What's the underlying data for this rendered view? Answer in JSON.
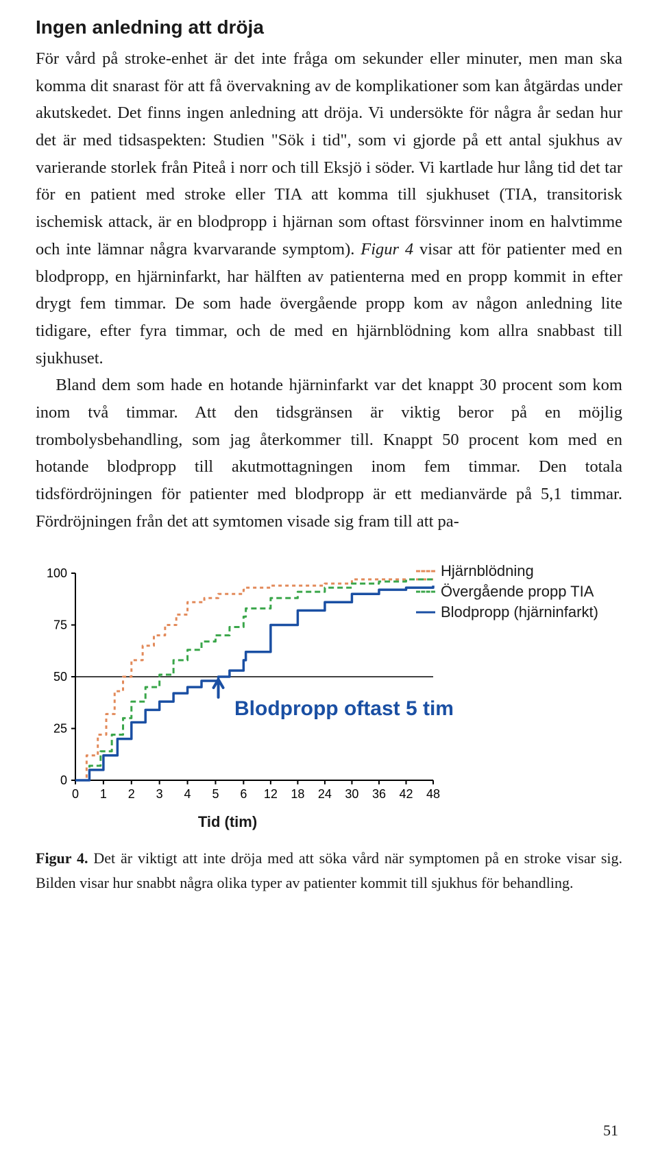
{
  "heading": "Ingen anledning att dröja",
  "para1_a": "För vård på stroke-enhet är det inte fråga om sekunder eller minuter, men man ska komma dit snarast för att få övervakning av de komplikationer som kan åtgärdas under akutskedet. Det finns ingen anledning att dröja. Vi undersökte för några år sedan hur det är med tidsaspekten: Studien \"Sök i tid\", som vi gjorde på ett antal sjukhus av varierande storlek från Piteå i norr och till Eksjö i söder. Vi kartlade hur lång tid det tar för en patient med stroke eller TIA att komma till sjukhuset (TIA, transitorisk ischemisk attack, är en blodpropp i hjärnan som oftast försvinner inom en halvtimme och inte lämnar några kvarvarande symptom). ",
  "fig_ref": "Figur 4",
  "para1_b": " visar att för patienter med en blodpropp, en hjärninfarkt, har hälften av patienterna med en propp kommit in efter drygt fem timmar. De som hade övergående propp kom av någon anledning lite tidigare, efter fyra timmar, och de med en hjärnblödning kom allra snabbast till sjukhuset.",
  "para2": "Bland dem som hade en hotande hjärninfarkt var det knappt 30 procent som kom inom två timmar. Att den tidsgränsen är viktig beror på en möjlig trombolysbehandling, som jag återkommer till. Knappt 50 procent kom med en hotande blodpropp till akutmottagningen inom fem timmar. Den totala tidsfördröjningen för patienter med blodpropp är ett medianvärde på 5,1 timmar. Fördröjningen från det att symtomen visade sig fram till att pa-",
  "chart": {
    "type": "line-step",
    "x_label": "Tid (tim)",
    "x_ticks": [
      "0",
      "1",
      "2",
      "3",
      "4",
      "5",
      "6",
      "12",
      "18",
      "24",
      "30",
      "36",
      "42",
      "48"
    ],
    "y_ticks": [
      "0",
      "25",
      "50",
      "75",
      "100"
    ],
    "ylim": [
      0,
      100
    ],
    "ref_line_y": 50,
    "background": "#ffffff",
    "axis_color": "#000000",
    "tick_font_size": 18,
    "annotation": "Blodpropp oftast 5 tim",
    "annotation_color": "#1a4fa3",
    "arrow_color": "#1a4fa3",
    "legend": [
      {
        "label": "Hjärnblödning",
        "color": "#e28a5a",
        "dash": "5,5"
      },
      {
        "label": "Övergående propp TIA",
        "color": "#3aa64a",
        "dash": "8,5"
      },
      {
        "label": "Blodpropp (hjärninfarkt)",
        "color": "#1a4fa3",
        "dash": ""
      }
    ],
    "series": {
      "hjarnblodning": {
        "color": "#e28a5a",
        "width": 3,
        "dash": "5,5",
        "points": [
          [
            0,
            0
          ],
          [
            0.4,
            12
          ],
          [
            0.8,
            22
          ],
          [
            1.1,
            32
          ],
          [
            1.4,
            43
          ],
          [
            1.7,
            50
          ],
          [
            2.0,
            58
          ],
          [
            2.4,
            65
          ],
          [
            2.8,
            70
          ],
          [
            3.2,
            75
          ],
          [
            3.6,
            80
          ],
          [
            4.0,
            86
          ],
          [
            4.6,
            88
          ],
          [
            5.1,
            90
          ],
          [
            6.0,
            92
          ],
          [
            6.5,
            93
          ],
          [
            12,
            94
          ],
          [
            18,
            94
          ],
          [
            24,
            95
          ],
          [
            30,
            97
          ],
          [
            36,
            97
          ],
          [
            42,
            97
          ],
          [
            48,
            97
          ]
        ]
      },
      "tia": {
        "color": "#3aa64a",
        "width": 3,
        "dash": "8,5",
        "points": [
          [
            0,
            0
          ],
          [
            0.5,
            7
          ],
          [
            0.9,
            14
          ],
          [
            1.3,
            22
          ],
          [
            1.7,
            30
          ],
          [
            2.0,
            38
          ],
          [
            2.5,
            45
          ],
          [
            3.0,
            51
          ],
          [
            3.5,
            58
          ],
          [
            4.0,
            63
          ],
          [
            4.5,
            67
          ],
          [
            5.0,
            70
          ],
          [
            5.5,
            74
          ],
          [
            6.0,
            79
          ],
          [
            6.5,
            83
          ],
          [
            12,
            88
          ],
          [
            18,
            91
          ],
          [
            24,
            93
          ],
          [
            30,
            95
          ],
          [
            36,
            96
          ],
          [
            42,
            97
          ],
          [
            48,
            97
          ]
        ]
      },
      "blodpropp": {
        "color": "#1a4fa3",
        "width": 3.5,
        "dash": "",
        "points": [
          [
            0,
            0
          ],
          [
            0.5,
            5
          ],
          [
            1.0,
            12
          ],
          [
            1.5,
            20
          ],
          [
            2.0,
            28
          ],
          [
            2.5,
            34
          ],
          [
            3.0,
            38
          ],
          [
            3.5,
            42
          ],
          [
            4.0,
            45
          ],
          [
            4.5,
            48
          ],
          [
            5.1,
            50
          ],
          [
            5.5,
            53
          ],
          [
            6.0,
            58
          ],
          [
            6.5,
            62
          ],
          [
            12,
            75
          ],
          [
            18,
            82
          ],
          [
            24,
            86
          ],
          [
            30,
            90
          ],
          [
            36,
            92
          ],
          [
            42,
            93
          ],
          [
            48,
            94
          ]
        ]
      }
    }
  },
  "caption_label": "Figur 4.",
  "caption_text": " Det är viktigt att inte dröja med att söka vård när symptomen på en stroke visar sig. Bilden visar hur snabbt några olika typer av patienter kommit till sjukhus för behandling.",
  "page_number": "51"
}
